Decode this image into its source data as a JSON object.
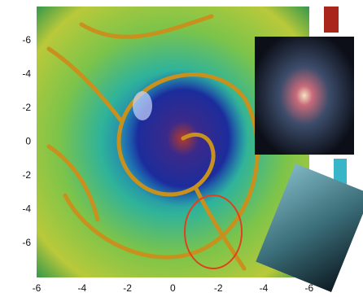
{
  "y_axis_labels": [
    "-6",
    "-4",
    "-2",
    "0",
    "-2",
    "-4",
    "-6"
  ],
  "x_axis_labels": [
    "-6",
    "-4",
    "-2",
    "0",
    "-2",
    "-4",
    "-6"
  ]
}
